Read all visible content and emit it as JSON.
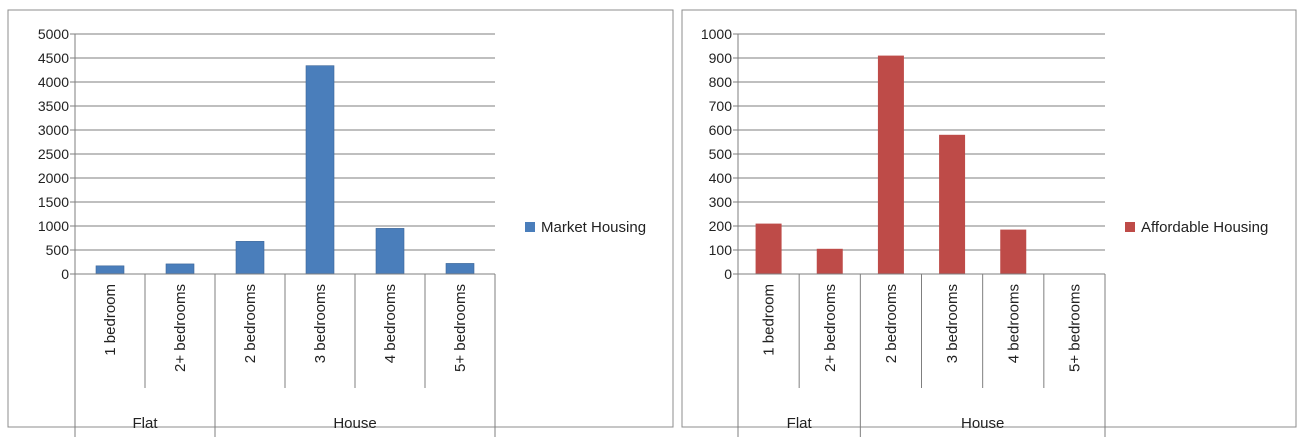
{
  "chart_data": [
    {
      "type": "bar",
      "categories": [
        "1 bedroom",
        "2+ bedrooms",
        "2 bedrooms",
        "3 bedrooms",
        "4 bedrooms",
        "5+ bedrooms"
      ],
      "groups": [
        {
          "label": "Flat",
          "categories": [
            "1 bedroom",
            "2+ bedrooms"
          ]
        },
        {
          "label": "House",
          "categories": [
            "2 bedrooms",
            "3 bedrooms",
            "4 bedrooms",
            "5+ bedrooms"
          ]
        }
      ],
      "series": [
        {
          "name": "Market Housing",
          "color": "#4a7ebb",
          "values": [
            170,
            210,
            680,
            4340,
            950,
            220
          ]
        }
      ],
      "ylim": [
        0,
        5000
      ],
      "yticks": [
        0,
        500,
        1000,
        1500,
        2000,
        2500,
        3000,
        3500,
        4000,
        4500,
        5000
      ],
      "grid": true,
      "legend": "right"
    },
    {
      "type": "bar",
      "categories": [
        "1 bedroom",
        "2+ bedrooms",
        "2 bedrooms",
        "3 bedrooms",
        "4 bedrooms",
        "5+ bedrooms"
      ],
      "groups": [
        {
          "label": "Flat",
          "categories": [
            "1 bedroom",
            "2+ bedrooms"
          ]
        },
        {
          "label": "House",
          "categories": [
            "2 bedrooms",
            "3 bedrooms",
            "4 bedrooms",
            "5+ bedrooms"
          ]
        }
      ],
      "series": [
        {
          "name": "Affordable Housing",
          "color": "#be4b48",
          "values": [
            210,
            105,
            910,
            580,
            185,
            0
          ]
        }
      ],
      "ylim": [
        0,
        1000
      ],
      "yticks": [
        0,
        100,
        200,
        300,
        400,
        500,
        600,
        700,
        800,
        900,
        1000
      ],
      "grid": true,
      "legend": "right"
    }
  ]
}
